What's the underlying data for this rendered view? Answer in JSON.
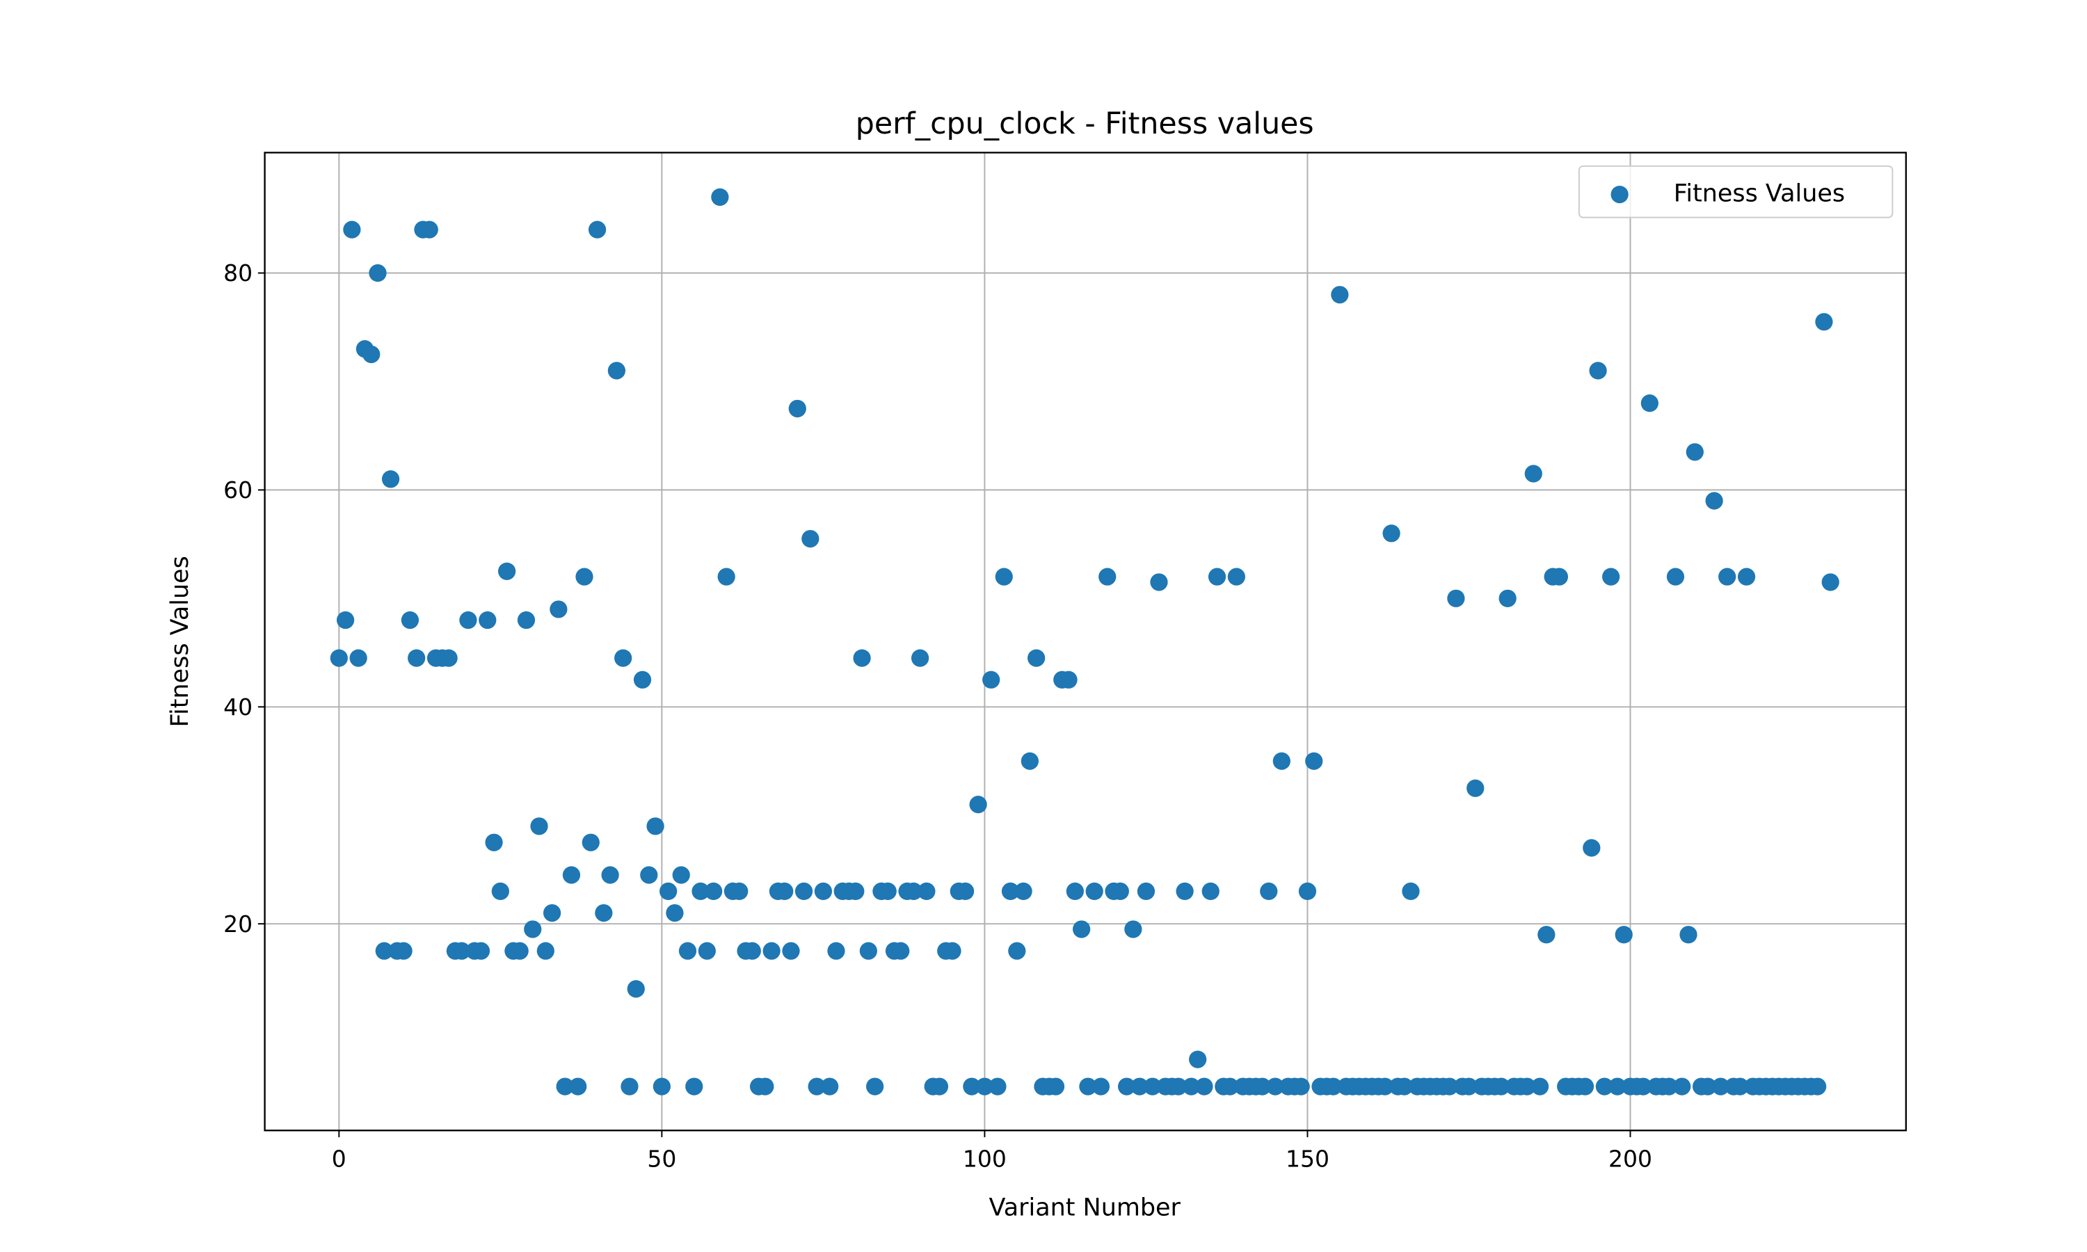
{
  "chart_data": {
    "type": "scatter",
    "title": "perf_cpu_clock - Fitness values",
    "x_label": "Variant Number",
    "y_label": "Fitness Values",
    "series": [
      {
        "name": "Fitness Values",
        "color": "#1f77b4",
        "x": [
          0,
          1,
          2,
          3,
          4,
          5,
          6,
          7,
          8,
          9,
          10,
          11,
          12,
          13,
          14,
          15,
          16,
          17,
          18,
          19,
          20,
          21,
          22,
          23,
          24,
          25,
          26,
          27,
          28,
          29,
          30,
          31,
          32,
          33,
          34,
          35,
          36,
          37,
          38,
          39,
          40,
          41,
          42,
          43,
          44,
          45,
          46,
          47,
          48,
          49,
          50,
          51,
          52,
          53,
          54,
          55,
          56,
          57,
          58,
          59,
          60,
          61,
          62,
          63,
          64,
          65,
          66,
          67,
          68,
          69,
          70,
          71,
          72,
          73,
          74,
          75,
          76,
          77,
          78,
          79,
          80,
          81,
          82,
          83,
          84,
          85,
          86,
          87,
          88,
          89,
          90,
          91,
          92,
          93,
          94,
          95,
          96,
          97,
          98,
          99,
          100,
          101,
          102,
          103,
          104,
          105,
          106,
          107,
          108,
          109,
          110,
          111,
          112,
          113,
          114,
          115,
          116,
          117,
          118,
          119,
          120,
          121,
          122,
          123,
          124,
          125,
          126,
          127,
          128,
          129,
          130,
          131,
          132,
          133,
          134,
          135,
          136,
          137,
          138,
          139,
          140,
          141,
          142,
          143,
          144,
          145,
          146,
          147,
          148,
          149,
          150,
          151,
          152,
          153,
          154,
          155,
          156,
          157,
          158,
          159,
          160,
          161,
          162,
          163,
          164,
          165,
          166,
          167,
          168,
          169,
          170,
          171,
          172,
          173,
          174,
          175,
          176,
          177,
          178,
          179,
          180,
          181,
          182,
          183,
          184,
          185,
          186,
          187,
          188,
          189,
          190,
          191,
          192,
          193,
          194,
          195,
          196,
          197,
          198,
          199,
          200,
          201,
          202,
          203,
          204,
          205,
          206,
          207,
          208,
          209,
          210,
          211,
          212,
          213,
          214,
          215,
          216,
          217,
          218,
          219,
          220,
          221,
          222,
          223,
          224,
          225,
          226,
          227,
          228,
          229,
          230,
          231
        ],
        "values": [
          44.5,
          48,
          84,
          44.5,
          73,
          72.5,
          80,
          17.5,
          61,
          17.5,
          17.5,
          48,
          44.5,
          84,
          84,
          44.5,
          44.5,
          44.5,
          17.5,
          17.5,
          48,
          17.5,
          17.5,
          48,
          27.5,
          23,
          52.5,
          17.5,
          17.5,
          48,
          19.5,
          29,
          17.5,
          21,
          49,
          5,
          24.5,
          5,
          52,
          27.5,
          84,
          21,
          24.5,
          71,
          44.5,
          5,
          14,
          42.5,
          24.5,
          29,
          5,
          23,
          21,
          24.5,
          17.5,
          5,
          23,
          17.5,
          23,
          87,
          52,
          23,
          23,
          17.5,
          17.5,
          5,
          5,
          17.5,
          23,
          23,
          17.5,
          67.5,
          23,
          55.5,
          5,
          23,
          5,
          17.5,
          23,
          23,
          23,
          44.5,
          17.5,
          5,
          23,
          23,
          17.5,
          17.5,
          23,
          23,
          44.5,
          23,
          5,
          5,
          17.5,
          17.5,
          23,
          23,
          5,
          31,
          5,
          42.5,
          5,
          52,
          23,
          17.5,
          23,
          35,
          44.5,
          5,
          5,
          5,
          42.5,
          42.5,
          23,
          19.5,
          5,
          23,
          5,
          52,
          23,
          23,
          5,
          19.5,
          5,
          23,
          5,
          51.5,
          5,
          5,
          5,
          23,
          5,
          7.5,
          5,
          23,
          52,
          5,
          5,
          52,
          5,
          5,
          5,
          5,
          23,
          5,
          35,
          5,
          5,
          5,
          23,
          35,
          5,
          5,
          5,
          78,
          5,
          5,
          5,
          5,
          5,
          5,
          5,
          56,
          5,
          5,
          23,
          5,
          5,
          5,
          5,
          5,
          5,
          50,
          5,
          5,
          32.5,
          5,
          5,
          5,
          5,
          50,
          5,
          5,
          5,
          61.5,
          5,
          19,
          52,
          52,
          5,
          5,
          5,
          5,
          27,
          71,
          5,
          52,
          5,
          19,
          5,
          5,
          5,
          68,
          5,
          5,
          5,
          52,
          5,
          19,
          63.5,
          5,
          5,
          59,
          5,
          52,
          5,
          5,
          52,
          5,
          5,
          5,
          5,
          5,
          5,
          5,
          5,
          5,
          5,
          5,
          75.5,
          51.5
        ]
      }
    ],
    "xlim": [
      -11.5,
      242.7
    ],
    "ylim": [
      0.95,
      91.1
    ],
    "xticks": [
      0,
      50,
      100,
      150,
      200
    ],
    "yticks": [
      20,
      40,
      60,
      80
    ],
    "grid": true,
    "legend": "upper right"
  }
}
